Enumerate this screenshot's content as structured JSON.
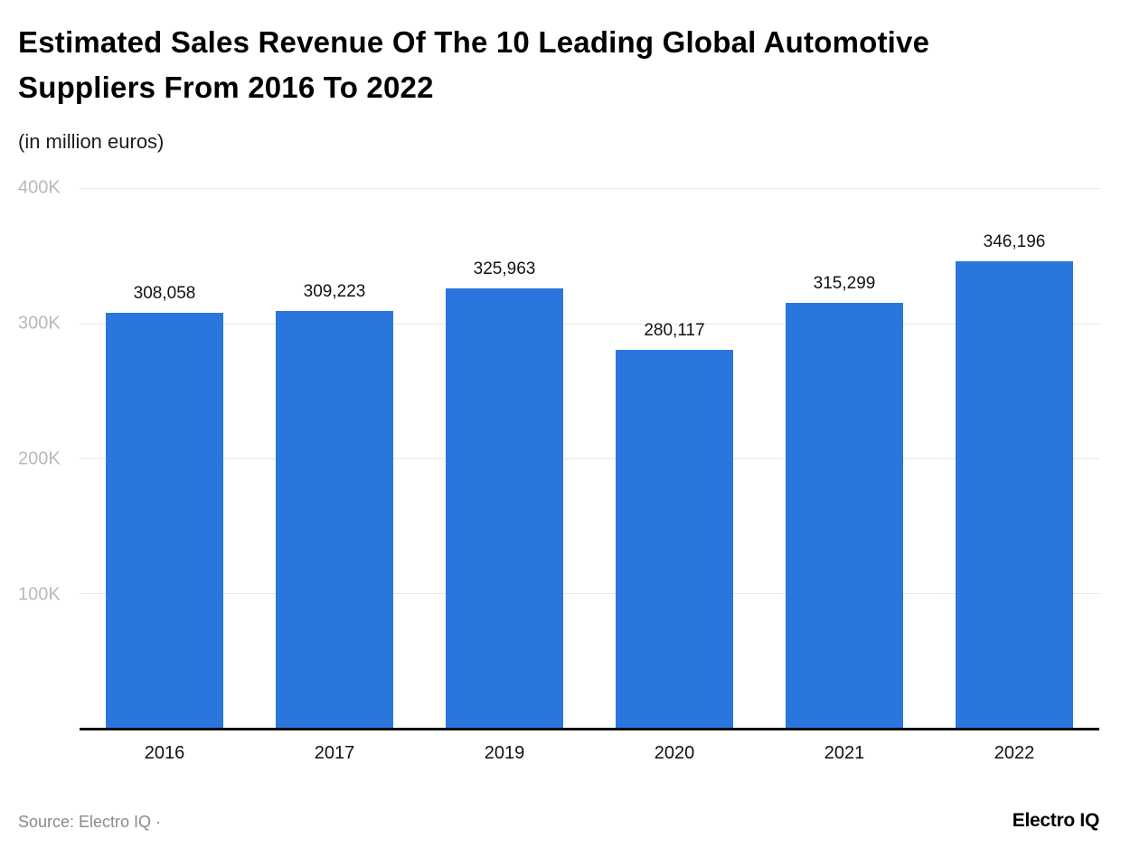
{
  "header": {
    "title": "Estimated Sales Revenue Of The 10 Leading Global Automotive Suppliers From 2016 To 2022",
    "subtitle": "(in million euros)"
  },
  "chart_data": {
    "type": "bar",
    "title": "Estimated Sales Revenue Of The 10 Leading Global Automotive Suppliers From 2016 To 2022",
    "subtitle": "(in million euros)",
    "categories": [
      "2016",
      "2017",
      "2019",
      "2020",
      "2021",
      "2022"
    ],
    "values": [
      308058,
      309223,
      325963,
      280117,
      315299,
      346196
    ],
    "value_labels": [
      "308,058",
      "309,223",
      "325,963",
      "280,117",
      "315,299",
      "346,196"
    ],
    "xlabel": "",
    "ylabel": "",
    "ylim": [
      0,
      400000
    ],
    "yticks": [
      {
        "label": "400K",
        "value": 400000
      },
      {
        "label": "300K",
        "value": 300000
      },
      {
        "label": "200K",
        "value": 200000
      },
      {
        "label": "100K",
        "value": 100000
      }
    ],
    "grid": true,
    "legend": "none",
    "bar_color": "#2a76dd",
    "gridline_color": "#e6e6e6",
    "axis_color": "#0b0b0b",
    "tick_label_color": "#b9b9b9"
  },
  "footer": {
    "source": "Source: Electro IQ ·",
    "brand": "Electro IQ"
  }
}
